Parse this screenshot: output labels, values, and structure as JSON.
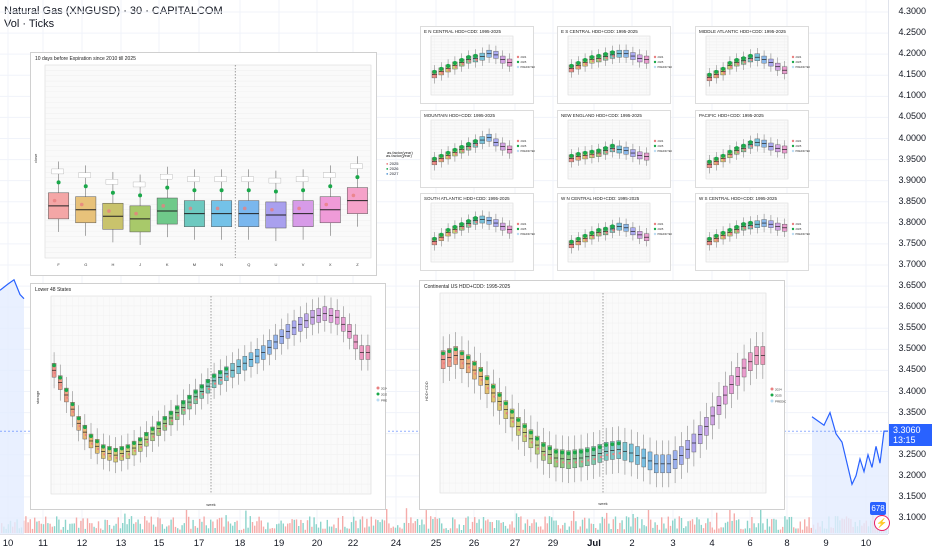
{
  "header": {
    "title": "Natural Gas (XNGUSD) · 30 · CAPITALCOM",
    "subtitle": "Vol · Ticks"
  },
  "price_axis": {
    "labels": [
      "4.3000",
      "4.2500",
      "4.2000",
      "4.1500",
      "4.1000",
      "4.0500",
      "4.0000",
      "3.9500",
      "3.9000",
      "3.8500",
      "3.8000",
      "3.7500",
      "3.7000",
      "3.6500",
      "3.6000",
      "3.5500",
      "3.5000",
      "3.4500",
      "3.4000",
      "3.3500",
      "3.3000",
      "3.2500",
      "3.2000",
      "3.1500",
      "3.1000"
    ],
    "current_price": "3.3060",
    "current_countdown": "13:15",
    "volume_badge": "678"
  },
  "time_axis": {
    "labels": [
      "10",
      "11",
      "12",
      "13",
      "15",
      "17",
      "18",
      "19",
      "20",
      "22",
      "24",
      "25",
      "26",
      "27",
      "29",
      "Jul",
      "2",
      "3",
      "4",
      "6",
      "8",
      "9",
      "10"
    ]
  },
  "colors": {
    "accent": "#2962ff",
    "up": "#26a69a",
    "down": "#ef5350"
  },
  "panels": {
    "expiration": {
      "title": "10 days before Expiration since 2010 till 2025",
      "ylabel": "close",
      "legend_title": "as.factor(year)",
      "legend_items": [
        "2025",
        "2026",
        "2027"
      ]
    },
    "lower48": {
      "title": "Lower 48 States",
      "ylabel": "storage",
      "xlabel": "week",
      "legend_items": [
        "2024",
        "2025",
        "PREDICTED"
      ]
    },
    "continental": {
      "title": "Continental US HDD+CDD: 1995-2025",
      "ylabel": "HDD+CDD",
      "xlabel": "week",
      "legend_items": [
        "2024",
        "2025",
        "PREDICTED"
      ]
    },
    "regions": [
      {
        "title": "E N CENTRAL HDD+CDD: 1995-2025"
      },
      {
        "title": "E S CENTRAL HDD+CDD: 1995-2025"
      },
      {
        "title": "MIDDLE ATLANTIC HDD+CDD: 1995-2025"
      },
      {
        "title": "MOUNTAIN HDD+CDD: 1995-2025"
      },
      {
        "title": "NEW ENGLAND HDD+CDD: 1995-2025"
      },
      {
        "title": "PACIFIC HDD+CDD: 1995-2025"
      },
      {
        "title": "SOUTH ATLANTIC HDD+CDD: 1995-2025"
      },
      {
        "title": "W N CENTRAL HDD+CDD: 1995-2025"
      },
      {
        "title": "W S CENTRAL HDD+CDD: 1995-2025"
      }
    ],
    "region_legend_items": [
      "2024",
      "2025",
      "PREDICTED"
    ]
  },
  "chart_data": [
    {
      "type": "line",
      "title": "Natural Gas (XNGUSD) · 30 · CAPITALCOM",
      "ylim": [
        3.1,
        4.3
      ],
      "series": [
        {
          "name": "",
          "x": [
            "10",
            "10.5",
            "11"
          ],
          "values": [
            3.64,
            3.66,
            3.63
          ]
        },
        {
          "name": "",
          "x": [
            "7.5",
            "8",
            "8.5",
            "9",
            "9.5",
            "10",
            "10.5"
          ],
          "values": [
            3.34,
            3.31,
            3.3,
            3.25,
            3.2,
            3.22,
            3.306
          ]
        }
      ]
    },
    {
      "type": "bar",
      "title": "10 days before Expiration since 2010 till 2025",
      "categories": [
        "F",
        "G",
        "H",
        "J",
        "K",
        "M",
        "N",
        "Q",
        "U",
        "V",
        "X",
        "Z"
      ],
      "medians": [
        3.6,
        3.45,
        3.2,
        3.1,
        3.4,
        3.3,
        3.3,
        3.3,
        3.25,
        3.3,
        3.45,
        3.8
      ],
      "ylim": [
        1.6,
        9.0
      ]
    },
    {
      "type": "line",
      "title": "Lower 48 States",
      "x": [
        1,
        3,
        5,
        7,
        9,
        11,
        13,
        15,
        17,
        19,
        21,
        23,
        25,
        27,
        29,
        31,
        33,
        35,
        37,
        39,
        41,
        43,
        45,
        47,
        49,
        51
      ],
      "values": [
        3050,
        2700,
        2300,
        2050,
        1900,
        1850,
        1900,
        2000,
        2150,
        2300,
        2450,
        2600,
        2750,
        2900,
        3000,
        3100,
        3200,
        3300,
        3450,
        3600,
        3700,
        3800,
        3850,
        3800,
        3600,
        3300
      ],
      "xlabel": "week",
      "ylabel": "storage"
    },
    {
      "type": "line",
      "title": "Continental US HDD+CDD: 1995-2025",
      "x": [
        1,
        3,
        5,
        7,
        9,
        11,
        13,
        15,
        17,
        19,
        21,
        23,
        25,
        27,
        29,
        31,
        33,
        35,
        37,
        39,
        41,
        43,
        45,
        47,
        49,
        51
      ],
      "values": [
        180,
        185,
        175,
        160,
        140,
        120,
        100,
        85,
        70,
        62,
        60,
        62,
        65,
        70,
        72,
        68,
        62,
        55,
        55,
        65,
        80,
        100,
        125,
        150,
        170,
        185
      ],
      "xlabel": "week",
      "ylabel": "HDD+CDD"
    }
  ]
}
